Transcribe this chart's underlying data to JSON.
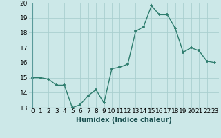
{
  "x": [
    0,
    1,
    2,
    3,
    4,
    5,
    6,
    7,
    8,
    9,
    10,
    11,
    12,
    13,
    14,
    15,
    16,
    17,
    18,
    19,
    20,
    21,
    22,
    23
  ],
  "y": [
    15.0,
    15.0,
    14.9,
    14.5,
    14.5,
    13.0,
    13.2,
    13.8,
    14.2,
    13.3,
    15.6,
    15.7,
    15.9,
    18.1,
    18.4,
    19.8,
    19.2,
    19.2,
    18.3,
    16.7,
    17.0,
    16.8,
    16.1,
    16.0
  ],
  "xlabel": "Humidex (Indice chaleur)",
  "ylim": [
    13,
    20
  ],
  "xlim": [
    -0.5,
    23.5
  ],
  "yticks": [
    13,
    14,
    15,
    16,
    17,
    18,
    19,
    20
  ],
  "xticks": [
    0,
    1,
    2,
    3,
    4,
    5,
    6,
    7,
    8,
    9,
    10,
    11,
    12,
    13,
    14,
    15,
    16,
    17,
    18,
    19,
    20,
    21,
    22,
    23
  ],
  "line_color": "#2e7d6e",
  "marker": "+",
  "bg_color": "#cce8e8",
  "grid_color": "#aacfcf",
  "label_fontsize": 7,
  "tick_fontsize": 6.5,
  "linewidth": 1.0,
  "markersize": 3.5
}
